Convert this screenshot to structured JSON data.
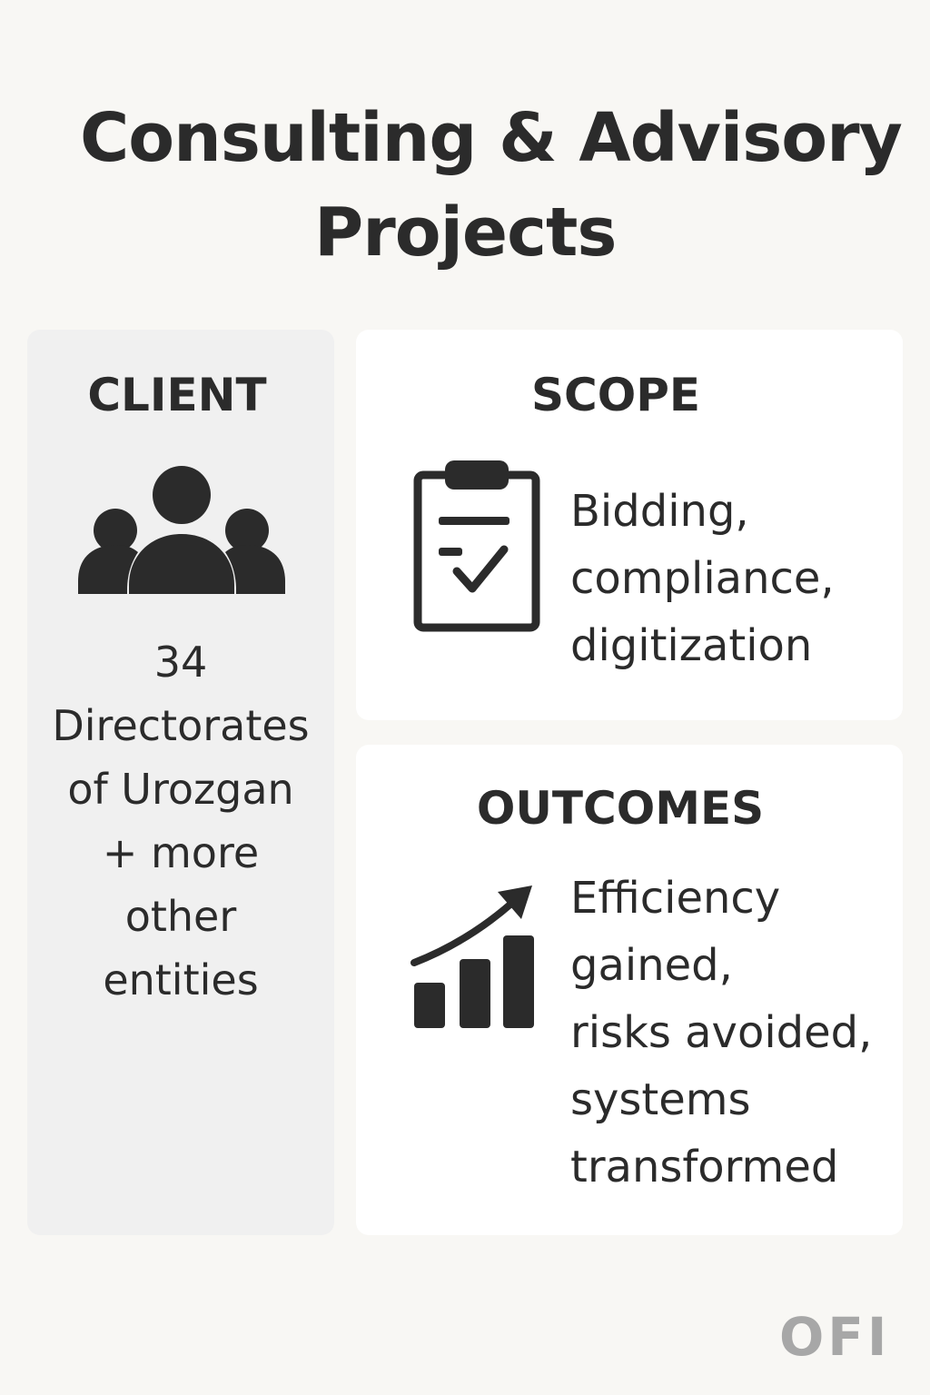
{
  "title": {
    "line1": "Consulting & Advisory",
    "line2": "Projects"
  },
  "client": {
    "heading": "CLIENT",
    "icon": "people-group-icon",
    "lines": [
      "34",
      "Directorates",
      "of Urozgan",
      "+ more",
      "other",
      "entities"
    ]
  },
  "scope": {
    "heading": "SCOPE",
    "icon": "clipboard-check-icon",
    "lines": [
      "Bidding,",
      "compliance,",
      "digitization"
    ]
  },
  "outcomes": {
    "heading": "OUTCOMES",
    "icon": "growth-chart-icon",
    "lines": [
      "Efficiency",
      "gained,",
      "risks avoided,",
      "systems",
      "transformed"
    ]
  },
  "logo": {
    "text": "OFI"
  },
  "colors": {
    "background": "#f8f7f4",
    "client_card": "#f0f0f0",
    "card": "#ffffff",
    "text": "#2b2b2b",
    "logo": "#a7a7a7"
  }
}
